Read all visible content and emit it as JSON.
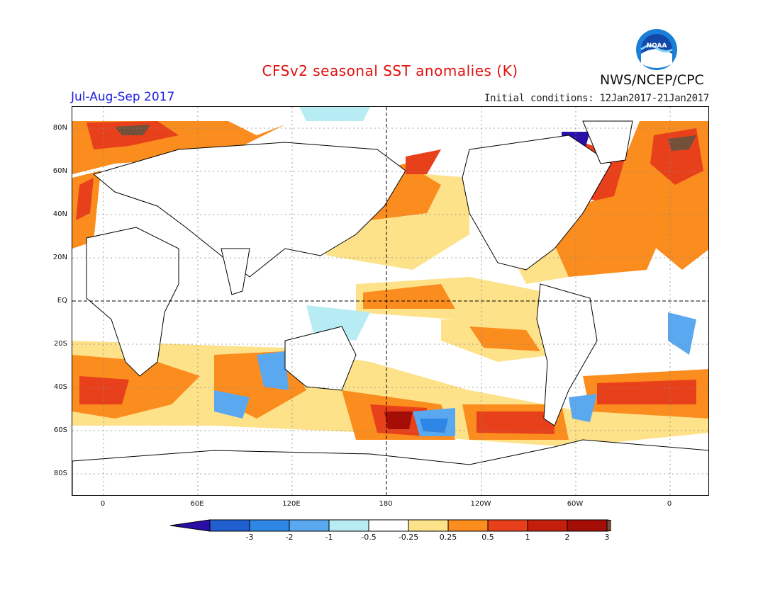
{
  "title": "CFSv2 seasonal SST anomalies (K)",
  "agency": "NWS/NCEP/CPC",
  "season": "Jul-Aug-Sep 2017",
  "initial_conditions": "Initial conditions: 12Jan2017-21Jan2017",
  "logo_text": "NOAA",
  "lat_labels": [
    "80N",
    "60N",
    "40N",
    "20N",
    "EQ",
    "20S",
    "40S",
    "60S",
    "80S"
  ],
  "lon_labels": [
    "0",
    "60E",
    "120E",
    "180",
    "120W",
    "60W",
    "0"
  ],
  "colorbar": {
    "labels": [
      "-3",
      "-2",
      "-1",
      "-0.5",
      "-0.25",
      "0.25",
      "0.5",
      "1",
      "2",
      "3"
    ],
    "colors": [
      "#2a0ea8",
      "#1f5fd0",
      "#2e87e6",
      "#5aa8f0",
      "#b8ecf4",
      "#ffffff",
      "#fde28a",
      "#fb8c1e",
      "#e8401a",
      "#c31f0c",
      "#a40e07",
      "#73503a"
    ]
  }
}
